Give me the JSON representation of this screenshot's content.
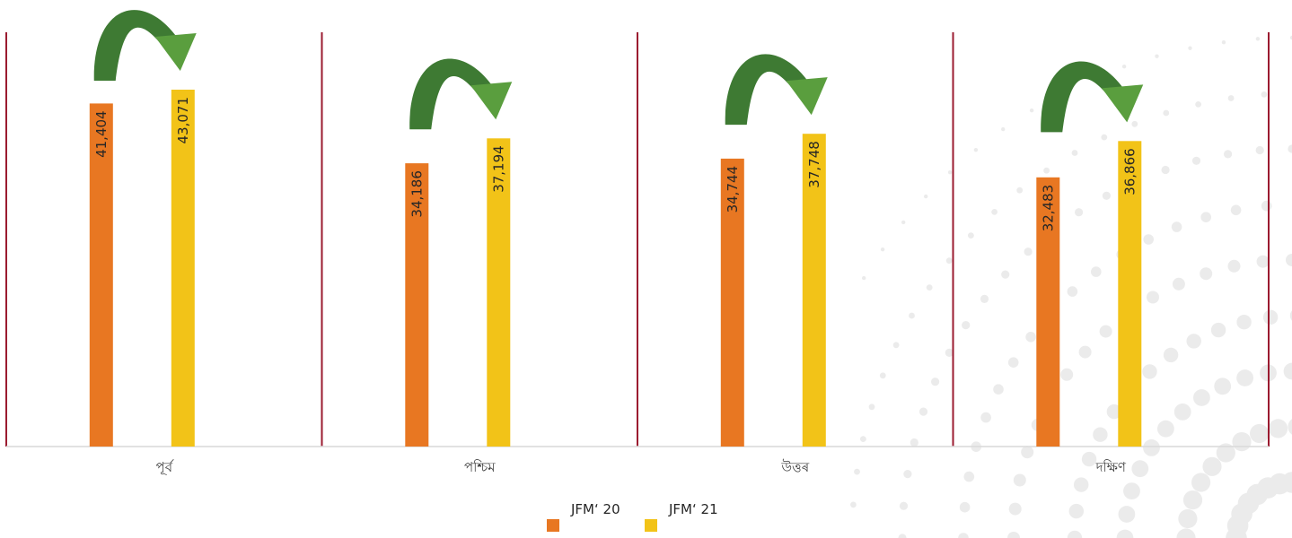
{
  "chart_data": {
    "type": "bar",
    "categories": [
      "পূৰ্ব",
      "পশ্চিম",
      "উত্তৰ",
      "দক্ষিণ"
    ],
    "series": [
      {
        "name": "JFM' 20",
        "color": "#E87722",
        "values": [
          41404,
          34186,
          34744,
          32483
        ]
      },
      {
        "name": "JFM' 21",
        "color": "#F2C318",
        "values": [
          43071,
          37194,
          37748,
          36866
        ]
      }
    ],
    "value_labels": [
      [
        "41,404",
        "34,186",
        "34,744",
        "32,483"
      ],
      [
        "43,071",
        "37,194",
        "37,748",
        "36,866"
      ]
    ],
    "ylim": [
      0,
      43071
    ],
    "grid": false,
    "legend": "bottom",
    "annotation": "green-curved-arrow-icon over each category indicating increase",
    "divider_color": "#9B1B30",
    "arrow_color_dark": "#3E7A33",
    "arrow_color_light": "#5A9E3E",
    "axis_color": "#D9D9D9"
  },
  "legend": {
    "items": [
      {
        "label": "JFM‘ 20",
        "color": "#E87722"
      },
      {
        "label": "JFM‘ 21",
        "color": "#F2C318"
      }
    ]
  }
}
